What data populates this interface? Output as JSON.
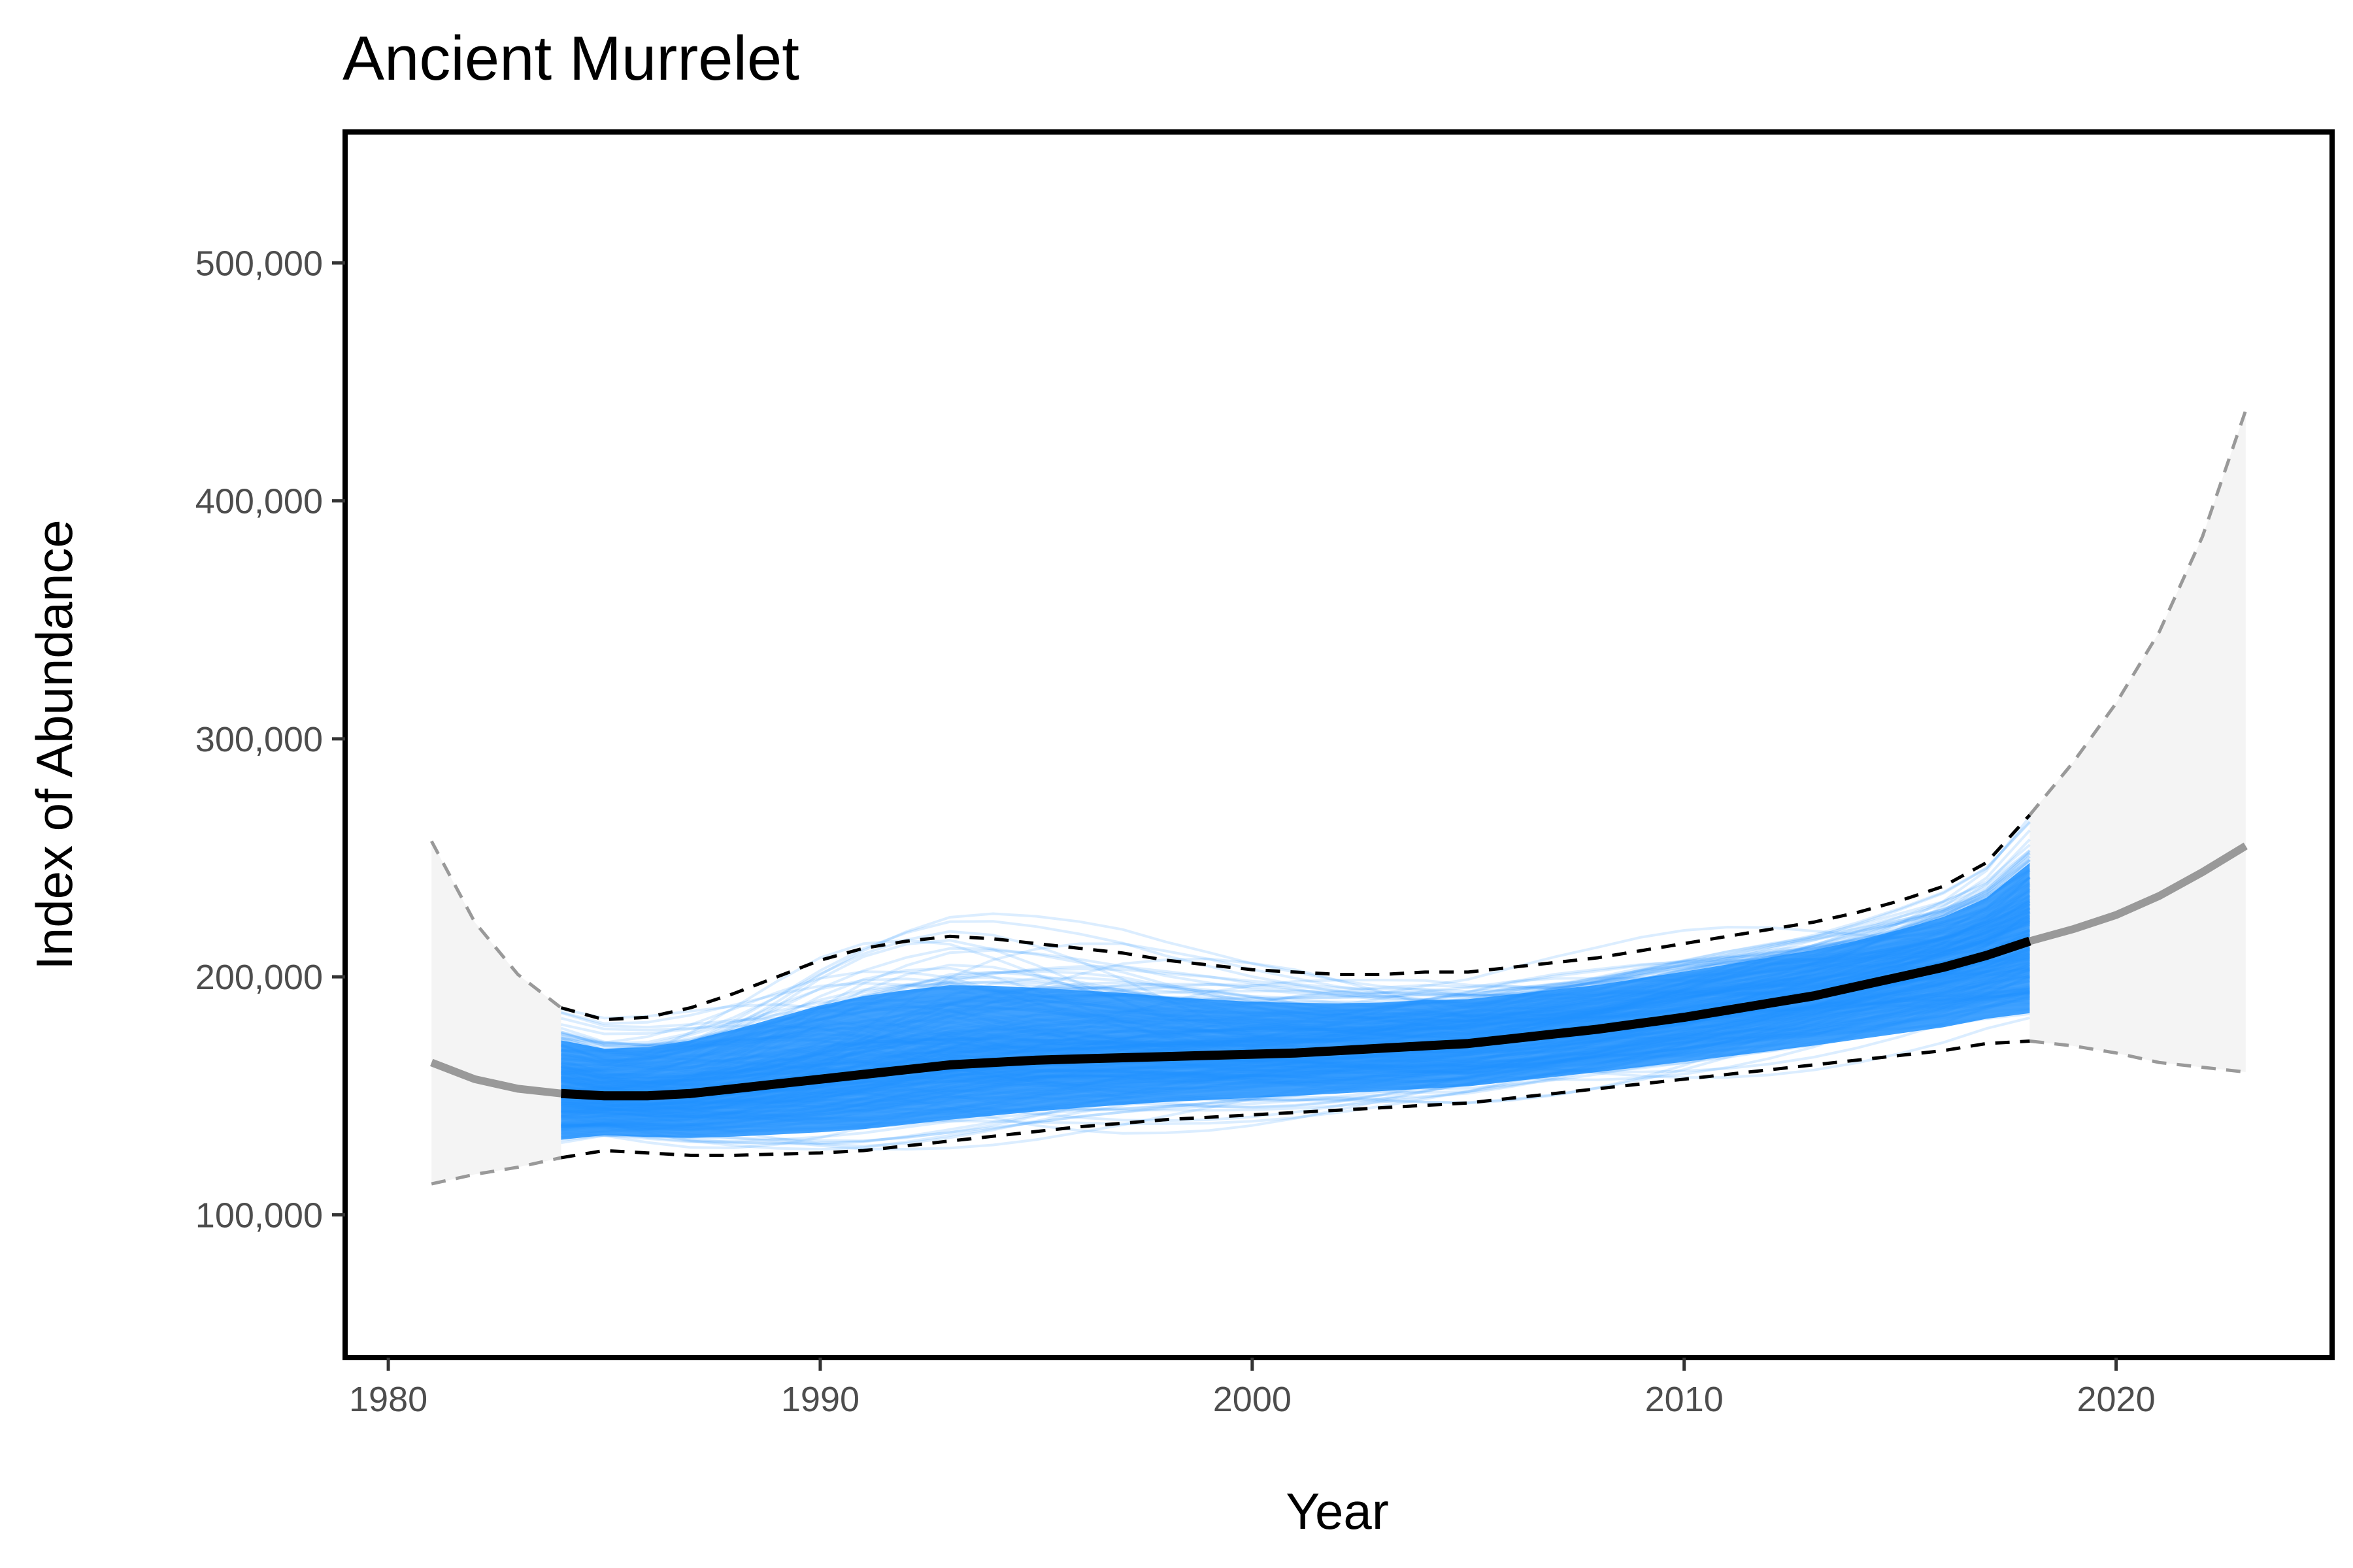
{
  "chart_data": {
    "type": "line",
    "title": "Ancient Murrelet",
    "xlabel": "Year",
    "ylabel": "Index of Abundance",
    "xlim": [
      1979,
      2025
    ],
    "ylim": [
      40000,
      555000
    ],
    "x_ticks": [
      1980,
      1990,
      2000,
      2010,
      2020
    ],
    "x_tick_labels": [
      "1980",
      "1990",
      "2000",
      "2010",
      "2020"
    ],
    "y_ticks": [
      100000,
      200000,
      300000,
      400000,
      500000
    ],
    "y_tick_labels": [
      "100,000",
      "200,000",
      "300,000",
      "400,000",
      "500,000"
    ],
    "grid": false,
    "legend": "none",
    "colors": {
      "draws": "#1e90ff",
      "fitted": "#000000",
      "projection": "#999999",
      "projection_band": "#f4f4f4",
      "ci_dashed": "#000000"
    },
    "fitted_period": {
      "x": [
        1984,
        1985,
        1986,
        1987,
        1988,
        1989,
        1990,
        1991,
        1992,
        1993,
        1994,
        1995,
        1996,
        1997,
        1998,
        1999,
        2000,
        2001,
        2002,
        2003,
        2004,
        2005,
        2006,
        2007,
        2008,
        2009,
        2010,
        2011,
        2012,
        2013,
        2014,
        2015,
        2016,
        2017,
        2018
      ],
      "median": [
        151000,
        150000,
        150000,
        151000,
        153000,
        155000,
        157000,
        159000,
        161000,
        163000,
        164000,
        165000,
        165500,
        166000,
        166500,
        167000,
        167500,
        168000,
        169000,
        170000,
        171000,
        172000,
        174000,
        176000,
        178000,
        180500,
        183000,
        186000,
        189000,
        192000,
        196000,
        200000,
        204000,
        209000,
        215000
      ],
      "upper": [
        187000,
        182000,
        183000,
        187000,
        193000,
        200000,
        207000,
        212000,
        215000,
        217000,
        216000,
        214000,
        212000,
        210000,
        207000,
        205000,
        203000,
        202000,
        201000,
        201000,
        202000,
        202000,
        204000,
        206000,
        208000,
        211000,
        214000,
        217000,
        220000,
        223000,
        227000,
        232000,
        238000,
        248000,
        268000
      ],
      "lower": [
        124000,
        127000,
        126000,
        125000,
        125000,
        125500,
        126000,
        127000,
        129000,
        131000,
        133000,
        135000,
        137000,
        138500,
        140000,
        141000,
        142000,
        143000,
        144000,
        145000,
        146000,
        147000,
        149000,
        151000,
        153000,
        155000,
        157000,
        159000,
        161000,
        163000,
        165000,
        167000,
        169000,
        172000,
        173000
      ]
    },
    "projection_before": {
      "x": [
        1981,
        1982,
        1983,
        1984
      ],
      "median": [
        164000,
        157000,
        153000,
        151000
      ],
      "upper": [
        257000,
        223000,
        201000,
        187000
      ],
      "lower": [
        113000,
        117000,
        120000,
        124000
      ]
    },
    "projection_after": {
      "x": [
        2018,
        2019,
        2020,
        2021,
        2022,
        2023
      ],
      "median": [
        215000,
        220000,
        226000,
        234000,
        244000,
        255000
      ],
      "upper": [
        268000,
        290000,
        315000,
        345000,
        385000,
        438000
      ],
      "lower": [
        173000,
        171000,
        168000,
        164000,
        162000,
        160000
      ]
    }
  }
}
